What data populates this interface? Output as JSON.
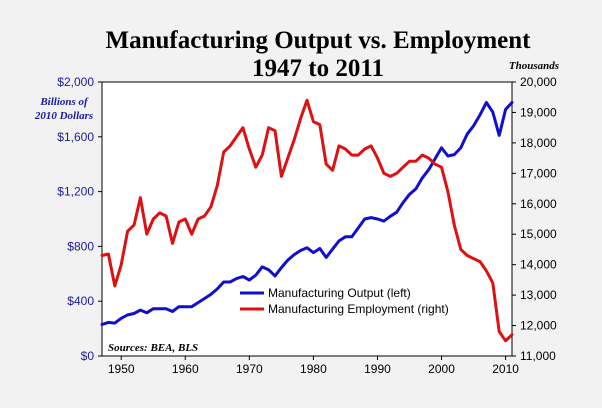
{
  "chart_data": {
    "type": "line",
    "title_line1": "Manufacturing Output vs. Employment",
    "title_line2": "1947 to 2011",
    "left_axis_label": "Billions of 2010 Dollars",
    "right_axis_label": "Thousands",
    "source": "Sources: BEA, BLS",
    "xlim": [
      1947,
      2011
    ],
    "x_ticks": [
      1950,
      1960,
      1970,
      1980,
      1990,
      2000,
      2010
    ],
    "left_ylim": [
      0,
      2000
    ],
    "left_ticks": [
      0,
      400,
      800,
      1200,
      1600,
      2000
    ],
    "left_tick_labels": [
      "$0",
      "$400",
      "$800",
      "$1,200",
      "$1,600",
      "$2,000"
    ],
    "right_ylim": [
      11000,
      20000
    ],
    "right_ticks": [
      11000,
      12000,
      13000,
      14000,
      15000,
      16000,
      17000,
      18000,
      19000,
      20000
    ],
    "right_tick_labels": [
      "11,000",
      "12,000",
      "13,000",
      "14,000",
      "15,000",
      "16,000",
      "17,000",
      "18,000",
      "19,000",
      "20,000"
    ],
    "legend_position": "center",
    "colors": {
      "output": "#1010cc",
      "employment": "#dd1111",
      "left_axis": "#1a1aa6",
      "right_axis": "#000000"
    },
    "series": [
      {
        "name": "Manufacturing Output (left)",
        "axis": "left",
        "x": [
          1947,
          1948,
          1949,
          1950,
          1951,
          1952,
          1953,
          1954,
          1955,
          1956,
          1957,
          1958,
          1959,
          1960,
          1961,
          1962,
          1963,
          1964,
          1965,
          1966,
          1967,
          1968,
          1969,
          1970,
          1971,
          1972,
          1973,
          1974,
          1975,
          1976,
          1977,
          1978,
          1979,
          1980,
          1981,
          1982,
          1983,
          1984,
          1985,
          1986,
          1987,
          1988,
          1989,
          1990,
          1991,
          1992,
          1993,
          1994,
          1995,
          1996,
          1997,
          1998,
          1999,
          2000,
          2001,
          2002,
          2003,
          2004,
          2005,
          2006,
          2007,
          2008,
          2009,
          2010,
          2011
        ],
        "y": [
          230,
          245,
          240,
          275,
          300,
          310,
          335,
          315,
          345,
          345,
          345,
          325,
          360,
          360,
          360,
          390,
          420,
          450,
          490,
          540,
          540,
          565,
          580,
          555,
          590,
          650,
          630,
          585,
          645,
          700,
          740,
          770,
          790,
          755,
          785,
          720,
          780,
          840,
          870,
          870,
          935,
          1000,
          1010,
          1000,
          985,
          1020,
          1050,
          1120,
          1180,
          1220,
          1300,
          1360,
          1440,
          1520,
          1460,
          1470,
          1520,
          1620,
          1680,
          1760,
          1850,
          1780,
          1610,
          1800,
          1850
        ]
      },
      {
        "name": "Manufacturing Employment (right)",
        "axis": "right",
        "x": [
          1947,
          1948,
          1949,
          1950,
          1951,
          1952,
          1953,
          1954,
          1955,
          1956,
          1957,
          1958,
          1959,
          1960,
          1961,
          1962,
          1963,
          1964,
          1965,
          1966,
          1967,
          1968,
          1969,
          1970,
          1971,
          1972,
          1973,
          1974,
          1975,
          1976,
          1977,
          1978,
          1979,
          1980,
          1981,
          1982,
          1983,
          1984,
          1985,
          1986,
          1987,
          1988,
          1989,
          1990,
          1991,
          1992,
          1993,
          1994,
          1995,
          1996,
          1997,
          1998,
          1999,
          2000,
          2001,
          2002,
          2003,
          2004,
          2005,
          2006,
          2007,
          2008,
          2009,
          2010,
          2011
        ],
        "y": [
          14300,
          14350,
          13300,
          14000,
          15100,
          15300,
          16200,
          15000,
          15500,
          15700,
          15600,
          14700,
          15400,
          15500,
          15000,
          15500,
          15600,
          15900,
          16600,
          17700,
          17900,
          18200,
          18500,
          17800,
          17200,
          17600,
          18500,
          18400,
          16900,
          17500,
          18100,
          18800,
          19400,
          18700,
          18600,
          17300,
          17100,
          17900,
          17800,
          17600,
          17600,
          17800,
          17900,
          17500,
          17000,
          16900,
          17000,
          17200,
          17400,
          17400,
          17600,
          17500,
          17300,
          17200,
          16400,
          15300,
          14500,
          14300,
          14200,
          14100,
          13800,
          13400,
          11800,
          11500,
          11700
        ]
      }
    ]
  }
}
